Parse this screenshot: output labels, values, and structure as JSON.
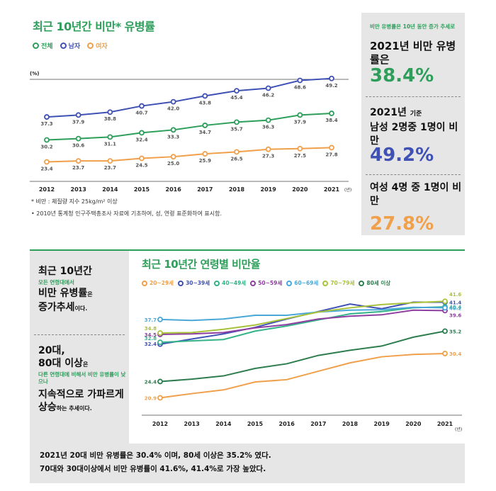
{
  "top": {
    "title": "최근 10년간 비만* 유병률",
    "unit": "(%)",
    "x_unit": "(년)",
    "note1": "* 비만 : 체질량 지수 25kg/m² 이상",
    "note2": "• 2010년 통계청 인구주택총조사 자료에 기초하여, 성, 연령 표준화하여 표시함."
  },
  "top_right": {
    "small": "비만 유병률은 10년 동안 증가 추세로",
    "year_line": "2021년 비만 유병률은",
    "value1": "38.4%",
    "male_line_a": "2021년",
    "male_line_b": "기준",
    "male_line_c": "남성 2명중 1명이 비만",
    "value2": "49.2%",
    "female_line": "여성 4명 중 1명이 비만",
    "value3": "27.8%"
  },
  "bottom_left": {
    "line1": "최근 10년간",
    "line2": "모든 연령대에서",
    "line3a": "비만 유병률",
    "line3b": "은",
    "line3c": "증가추세",
    "line3d": "이다.",
    "line4a": "20대,",
    "line4b": "80대 이상",
    "line4c": "은",
    "line5": "다른 연령대에 비해서 비만 유병률이 낮으나",
    "line6a": "지속적으로 가파르게",
    "line6b": "상승",
    "line6c": "하는 추세이다."
  },
  "bottom": {
    "title": "최근 10년간 연령별 비만율",
    "x_unit": "(년)"
  },
  "summary": {
    "line1": "2021년 20대 비만 유병률은 30.4% 이며, 80세 이상은 35.2% 였다.",
    "line2": "70대와 30대이상에서 비만 유병률이 41.6%, 41.4%로 가장 높았다."
  },
  "colors": {
    "green": "#2e9e5b",
    "blue": "#3f51b5",
    "orange": "#f0a04b"
  },
  "chart_data": [
    {
      "type": "line",
      "title": "최근 10년간 비만* 유병률",
      "ylabel": "(%)",
      "xlabel": "(년)",
      "x": [
        2012,
        2013,
        2014,
        2015,
        2016,
        2017,
        2018,
        2019,
        2020,
        2021
      ],
      "ylim": [
        20,
        52
      ],
      "series": [
        {
          "name": "전체",
          "color": "#2e9e5b",
          "values": [
            30.2,
            30.6,
            31.1,
            32.4,
            33.3,
            34.7,
            35.7,
            36.3,
            37.9,
            38.4
          ],
          "labels": [
            "30.2",
            "30.6",
            "31.1",
            "32.4",
            "33.3",
            "34.7",
            "35.7",
            "36.3",
            "37.9",
            "38.4"
          ]
        },
        {
          "name": "남자",
          "color": "#3f51b5",
          "values": [
            37.3,
            37.9,
            38.8,
            40.7,
            42.0,
            43.8,
            45.4,
            46.2,
            48.6,
            49.2
          ],
          "labels": [
            "37.3",
            "37.9",
            "38.8",
            "40.7",
            "42.0",
            "43.8",
            "45.4",
            "46.2",
            "48.6",
            "49.2"
          ]
        },
        {
          "name": "여자",
          "color": "#f0a04b",
          "values": [
            23.4,
            23.7,
            23.7,
            24.5,
            25.0,
            25.9,
            26.5,
            27.3,
            27.5,
            27.8
          ],
          "labels": [
            "23.4",
            "23.7",
            "23.7",
            "24.5",
            "25.0",
            "25.9",
            "26.5",
            "27.3",
            "27.5",
            "27.8"
          ]
        }
      ]
    },
    {
      "type": "line",
      "title": "최근 10년간 연령별 비만율",
      "xlabel": "(년)",
      "x": [
        2012,
        2013,
        2014,
        2015,
        2016,
        2017,
        2018,
        2019,
        2020,
        2021
      ],
      "ylim": [
        19,
        43
      ],
      "series": [
        {
          "name": "20~29세",
          "color": "#f0a04b",
          "values": [
            20.9,
            21.8,
            22.6,
            24.3,
            24.8,
            26.6,
            28.4,
            29.7,
            30.2,
            30.4
          ],
          "start_label": "20.9",
          "end_label": "30.4"
        },
        {
          "name": "30~39세",
          "color": "#3f51b5",
          "values": [
            32.4,
            33.5,
            34.6,
            36.0,
            37.8,
            39.4,
            41.0,
            40.0,
            41.4,
            41.4
          ],
          "start_label": "32.4",
          "end_label": "41.4"
        },
        {
          "name": "40~49세",
          "color": "#34b38a",
          "values": [
            32.8,
            33.1,
            33.4,
            35.2,
            36.3,
            37.6,
            38.9,
            39.4,
            40.2,
            40.4
          ],
          "start_label": "32.8",
          "end_label": "40.4"
        },
        {
          "name": "50~59세",
          "color": "#8e3fa0",
          "values": [
            34.5,
            34.6,
            34.9,
            35.9,
            36.6,
            37.8,
            38.4,
            38.7,
            39.7,
            39.6
          ],
          "start_label": "34.5",
          "end_label": "39.6"
        },
        {
          "name": "60~69세",
          "color": "#4aa8d8",
          "values": [
            37.7,
            37.5,
            37.8,
            38.6,
            38.6,
            39.3,
            39.7,
            39.8,
            40.3,
            40.2
          ],
          "start_label": "37.7",
          "end_label": "40.2"
        },
        {
          "name": "70~79세",
          "color": "#a8c23a",
          "values": [
            34.8,
            34.9,
            35.6,
            36.5,
            37.9,
            39.3,
            40.2,
            40.9,
            41.3,
            41.6
          ],
          "start_label": "34.8",
          "end_label": "41.6"
        },
        {
          "name": "80세 이상",
          "color": "#2e7d4f",
          "values": [
            24.4,
            24.9,
            25.6,
            27.2,
            28.2,
            30.0,
            31.1,
            32.0,
            33.9,
            35.2
          ],
          "start_label": "24.4",
          "end_label": "35.2"
        }
      ]
    }
  ]
}
